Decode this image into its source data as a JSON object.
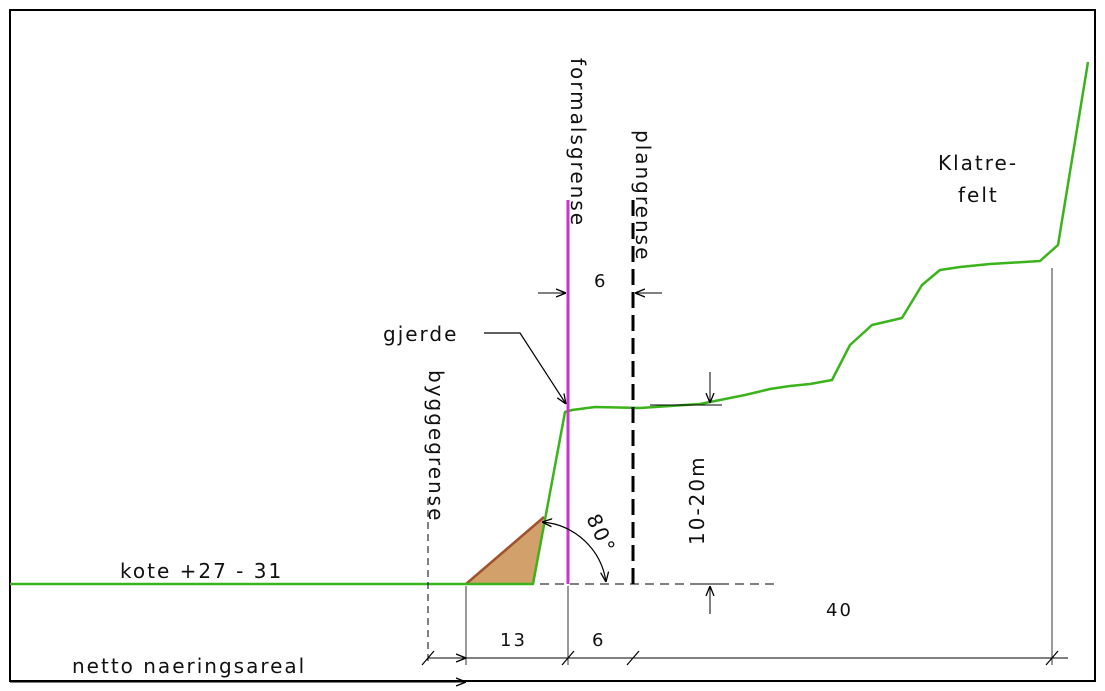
{
  "colors": {
    "terrain": "#3bb31a",
    "formal_line": "#cc33cc",
    "fill_wedge": "#d2a06a",
    "wedge_edge": "#a0522d",
    "line": "#000000",
    "border": "#000000"
  },
  "labels": {
    "kote": "kote +27 - 31",
    "netto": "netto naeringsareal",
    "byggegrense": "byggegrense",
    "formalsgrense": "formalsgrense",
    "plangrense": "plangrense",
    "gjerde": "gjerde",
    "klatrefelt_1": "Klatre-",
    "klatrefelt_2": "felt",
    "angle": "80°",
    "height": "10-20m"
  },
  "dimensions": {
    "dim_13": "13",
    "dim_6_bottom": "6",
    "dim_6_top": "6",
    "dim_40": "40"
  }
}
